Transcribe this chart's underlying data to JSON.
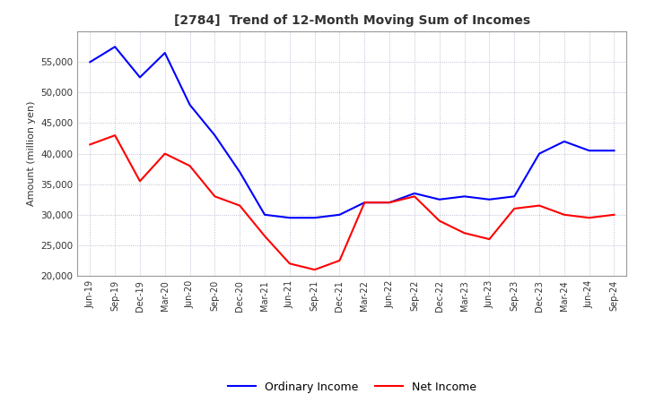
{
  "title": "[2784]  Trend of 12-Month Moving Sum of Incomes",
  "ylabel": "Amount (million yen)",
  "ylim": [
    20000,
    60000
  ],
  "yticks": [
    20000,
    25000,
    30000,
    35000,
    40000,
    45000,
    50000,
    55000
  ],
  "x_labels": [
    "Jun-19",
    "Sep-19",
    "Dec-19",
    "Mar-20",
    "Jun-20",
    "Sep-20",
    "Dec-20",
    "Mar-21",
    "Jun-21",
    "Sep-21",
    "Dec-21",
    "Mar-22",
    "Jun-22",
    "Sep-22",
    "Dec-22",
    "Mar-23",
    "Jun-23",
    "Sep-23",
    "Dec-23",
    "Mar-24",
    "Jun-24",
    "Sep-24"
  ],
  "ordinary_income": [
    55000,
    57500,
    52500,
    56500,
    48000,
    43000,
    37000,
    30000,
    29500,
    29500,
    30000,
    32000,
    32000,
    33500,
    32500,
    33000,
    32500,
    33000,
    40000,
    42000,
    40500,
    40500
  ],
  "net_income": [
    41500,
    43000,
    35500,
    40000,
    38000,
    33000,
    31500,
    26500,
    22000,
    21000,
    22500,
    32000,
    32000,
    33000,
    29000,
    27000,
    26000,
    31000,
    31500,
    30000,
    29500,
    30000
  ],
  "ordinary_color": "#0000ff",
  "net_color": "#ff0000",
  "legend_labels": [
    "Ordinary Income",
    "Net Income"
  ],
  "grid_color": "#aaaacc",
  "plot_bg_color": "#ffffff",
  "background_color": "#ffffff"
}
